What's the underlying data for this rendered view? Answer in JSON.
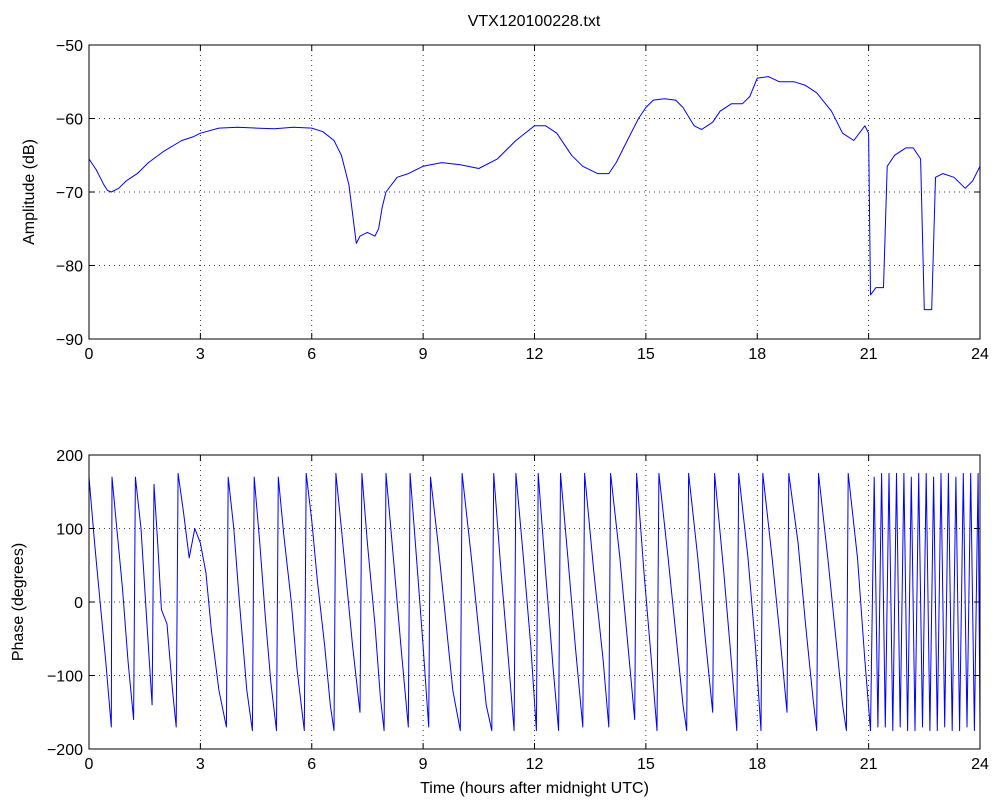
{
  "figure": {
    "title": "VTX120100228.txt",
    "background": "#ffffff",
    "line_color": "#0000ff"
  },
  "chart_data": [
    {
      "type": "line",
      "title": "VTX120100228.txt",
      "xlabel": "",
      "ylabel": "Amplitude (dB)",
      "xlim": [
        0,
        24
      ],
      "ylim": [
        -90,
        -50
      ],
      "xticks": [
        0,
        3,
        6,
        9,
        12,
        15,
        18,
        21,
        24
      ],
      "yticks": [
        -90,
        -80,
        -70,
        -60,
        -50
      ],
      "grid": true,
      "series": [
        {
          "values": [
            [
              0,
              -65.5
            ],
            [
              0.2,
              -67
            ],
            [
              0.4,
              -69
            ],
            [
              0.5,
              -69.8
            ],
            [
              0.6,
              -70
            ],
            [
              0.8,
              -69.5
            ],
            [
              1,
              -68.5
            ],
            [
              1.3,
              -67.5
            ],
            [
              1.6,
              -66
            ],
            [
              2,
              -64.5
            ],
            [
              2.5,
              -63
            ],
            [
              2.8,
              -62.5
            ],
            [
              3,
              -62
            ],
            [
              3.5,
              -61.3
            ],
            [
              4,
              -61.2
            ],
            [
              4.5,
              -61.3
            ],
            [
              5,
              -61.4
            ],
            [
              5.5,
              -61.2
            ],
            [
              6,
              -61.3
            ],
            [
              6.3,
              -61.8
            ],
            [
              6.6,
              -63
            ],
            [
              6.8,
              -65
            ],
            [
              7,
              -69
            ],
            [
              7.1,
              -73
            ],
            [
              7.2,
              -77
            ],
            [
              7.3,
              -76
            ],
            [
              7.5,
              -75.5
            ],
            [
              7.7,
              -76
            ],
            [
              7.8,
              -75
            ],
            [
              7.9,
              -72
            ],
            [
              8,
              -70
            ],
            [
              8.3,
              -68
            ],
            [
              8.6,
              -67.5
            ],
            [
              9,
              -66.5
            ],
            [
              9.5,
              -66
            ],
            [
              10,
              -66.3
            ],
            [
              10.5,
              -66.8
            ],
            [
              11,
              -65.5
            ],
            [
              11.5,
              -63
            ],
            [
              12,
              -61
            ],
            [
              12.3,
              -61
            ],
            [
              12.6,
              -62
            ],
            [
              13,
              -65
            ],
            [
              13.3,
              -66.5
            ],
            [
              13.7,
              -67.5
            ],
            [
              14,
              -67.5
            ],
            [
              14.2,
              -66
            ],
            [
              14.5,
              -63
            ],
            [
              14.8,
              -60
            ],
            [
              15,
              -58.5
            ],
            [
              15.2,
              -57.5
            ],
            [
              15.5,
              -57.3
            ],
            [
              15.8,
              -57.5
            ],
            [
              16,
              -58.5
            ],
            [
              16.3,
              -61
            ],
            [
              16.5,
              -61.5
            ],
            [
              16.8,
              -60.5
            ],
            [
              17,
              -59
            ],
            [
              17.3,
              -58
            ],
            [
              17.6,
              -58
            ],
            [
              17.8,
              -57
            ],
            [
              18,
              -54.5
            ],
            [
              18.3,
              -54.3
            ],
            [
              18.6,
              -55
            ],
            [
              19,
              -55
            ],
            [
              19.3,
              -55.5
            ],
            [
              19.6,
              -56.5
            ],
            [
              20,
              -59
            ],
            [
              20.3,
              -62
            ],
            [
              20.6,
              -63
            ],
            [
              20.9,
              -61
            ],
            [
              21,
              -62
            ],
            [
              21.05,
              -84
            ],
            [
              21.2,
              -83
            ],
            [
              21.4,
              -83
            ],
            [
              21.5,
              -66.5
            ],
            [
              21.7,
              -65
            ],
            [
              22,
              -64
            ],
            [
              22.2,
              -64
            ],
            [
              22.4,
              -65.5
            ],
            [
              22.5,
              -86
            ],
            [
              22.7,
              -86
            ],
            [
              22.8,
              -68
            ],
            [
              23,
              -67.5
            ],
            [
              23.3,
              -68
            ],
            [
              23.6,
              -69.5
            ],
            [
              23.8,
              -68.5
            ],
            [
              24,
              -66.5
            ]
          ]
        }
      ]
    },
    {
      "type": "line",
      "title": "",
      "xlabel": "Time (hours after midnight UTC)",
      "ylabel": "Phase (degrees)",
      "xlim": [
        0,
        24
      ],
      "ylim": [
        -200,
        200
      ],
      "xticks": [
        0,
        3,
        6,
        9,
        12,
        15,
        18,
        21,
        24
      ],
      "yticks": [
        -200,
        -100,
        0,
        100,
        200
      ],
      "grid": true,
      "series": [
        {
          "values": [
            [
              0,
              170
            ],
            [
              0.15,
              80
            ],
            [
              0.3,
              0
            ],
            [
              0.45,
              -80
            ],
            [
              0.6,
              -170
            ],
            [
              0.62,
              170
            ],
            [
              0.75,
              100
            ],
            [
              0.9,
              20
            ],
            [
              1.05,
              -80
            ],
            [
              1.2,
              -160
            ],
            [
              1.25,
              170
            ],
            [
              1.4,
              100
            ],
            [
              1.55,
              -20
            ],
            [
              1.7,
              -140
            ],
            [
              1.75,
              160
            ],
            [
              1.85,
              80
            ],
            [
              1.95,
              -10
            ],
            [
              2.1,
              -30
            ],
            [
              2.25,
              -120
            ],
            [
              2.35,
              -170
            ],
            [
              2.4,
              175
            ],
            [
              2.55,
              120
            ],
            [
              2.7,
              60
            ],
            [
              2.85,
              100
            ],
            [
              3,
              80
            ],
            [
              3.15,
              40
            ],
            [
              3.3,
              -40
            ],
            [
              3.5,
              -120
            ],
            [
              3.7,
              -170
            ],
            [
              3.75,
              170
            ],
            [
              3.9,
              100
            ],
            [
              4.05,
              0
            ],
            [
              4.25,
              -120
            ],
            [
              4.4,
              -175
            ],
            [
              4.45,
              170
            ],
            [
              4.6,
              80
            ],
            [
              4.75,
              -20
            ],
            [
              4.9,
              -110
            ],
            [
              5.05,
              -175
            ],
            [
              5.1,
              170
            ],
            [
              5.25,
              90
            ],
            [
              5.45,
              0
            ],
            [
              5.6,
              -90
            ],
            [
              5.8,
              -175
            ],
            [
              5.85,
              175
            ],
            [
              6,
              110
            ],
            [
              6.15,
              30
            ],
            [
              6.35,
              -60
            ],
            [
              6.5,
              -140
            ],
            [
              6.6,
              -175
            ],
            [
              6.65,
              175
            ],
            [
              6.8,
              100
            ],
            [
              6.95,
              20
            ],
            [
              7.1,
              -60
            ],
            [
              7.3,
              -150
            ],
            [
              7.35,
              175
            ],
            [
              7.5,
              80
            ],
            [
              7.7,
              -30
            ],
            [
              7.85,
              -130
            ],
            [
              7.95,
              -175
            ],
            [
              8,
              175
            ],
            [
              8.2,
              60
            ],
            [
              8.4,
              -60
            ],
            [
              8.6,
              -170
            ],
            [
              8.65,
              175
            ],
            [
              8.85,
              40
            ],
            [
              9,
              -60
            ],
            [
              9.15,
              -170
            ],
            [
              9.2,
              170
            ],
            [
              9.4,
              80
            ],
            [
              9.6,
              -20
            ],
            [
              9.8,
              -120
            ],
            [
              10,
              -175
            ],
            [
              10.05,
              175
            ],
            [
              10.3,
              60
            ],
            [
              10.5,
              -40
            ],
            [
              10.7,
              -140
            ],
            [
              10.85,
              -175
            ],
            [
              10.9,
              175
            ],
            [
              11.1,
              40
            ],
            [
              11.3,
              -80
            ],
            [
              11.45,
              -175
            ],
            [
              11.5,
              175
            ],
            [
              11.7,
              60
            ],
            [
              11.9,
              -60
            ],
            [
              12.05,
              -175
            ],
            [
              12.1,
              175
            ],
            [
              12.3,
              40
            ],
            [
              12.5,
              -90
            ],
            [
              12.65,
              -175
            ],
            [
              12.7,
              175
            ],
            [
              12.9,
              60
            ],
            [
              13.1,
              -60
            ],
            [
              13.3,
              -170
            ],
            [
              13.35,
              175
            ],
            [
              13.6,
              40
            ],
            [
              13.85,
              -80
            ],
            [
              14,
              -170
            ],
            [
              14.05,
              175
            ],
            [
              14.3,
              60
            ],
            [
              14.5,
              -50
            ],
            [
              14.7,
              -160
            ],
            [
              14.75,
              175
            ],
            [
              14.95,
              40
            ],
            [
              15.15,
              -80
            ],
            [
              15.3,
              -175
            ],
            [
              15.35,
              175
            ],
            [
              15.6,
              60
            ],
            [
              15.8,
              -40
            ],
            [
              16,
              -140
            ],
            [
              16.1,
              -175
            ],
            [
              16.15,
              175
            ],
            [
              16.4,
              60
            ],
            [
              16.6,
              -50
            ],
            [
              16.8,
              -150
            ],
            [
              16.85,
              175
            ],
            [
              17.1,
              40
            ],
            [
              17.3,
              -80
            ],
            [
              17.45,
              -175
            ],
            [
              17.5,
              175
            ],
            [
              17.75,
              60
            ],
            [
              17.95,
              -60
            ],
            [
              18.1,
              -175
            ],
            [
              18.15,
              175
            ],
            [
              18.4,
              60
            ],
            [
              18.6,
              -40
            ],
            [
              18.8,
              -150
            ],
            [
              18.85,
              175
            ],
            [
              19.1,
              80
            ],
            [
              19.3,
              -30
            ],
            [
              19.5,
              -130
            ],
            [
              19.6,
              -175
            ],
            [
              19.65,
              175
            ],
            [
              19.9,
              60
            ],
            [
              20.1,
              -40
            ],
            [
              20.3,
              -140
            ],
            [
              20.4,
              -175
            ],
            [
              20.45,
              175
            ],
            [
              20.7,
              60
            ],
            [
              20.9,
              -80
            ],
            [
              21.05,
              -175
            ],
            [
              21.15,
              170
            ],
            [
              21.25,
              -170
            ],
            [
              21.35,
              175
            ],
            [
              21.45,
              -170
            ],
            [
              21.55,
              175
            ],
            [
              21.65,
              -175
            ],
            [
              21.75,
              175
            ],
            [
              21.85,
              -170
            ],
            [
              21.95,
              175
            ],
            [
              22.05,
              -175
            ],
            [
              22.15,
              170
            ],
            [
              22.25,
              -175
            ],
            [
              22.35,
              175
            ],
            [
              22.45,
              -170
            ],
            [
              22.55,
              175
            ],
            [
              22.65,
              -175
            ],
            [
              22.75,
              170
            ],
            [
              22.85,
              -175
            ],
            [
              22.95,
              175
            ],
            [
              23.05,
              -170
            ],
            [
              23.15,
              175
            ],
            [
              23.25,
              -175
            ],
            [
              23.35,
              170
            ],
            [
              23.45,
              -175
            ],
            [
              23.55,
              175
            ],
            [
              23.65,
              -170
            ],
            [
              23.75,
              175
            ],
            [
              23.85,
              -175
            ],
            [
              23.95,
              175
            ],
            [
              24,
              -170
            ]
          ]
        }
      ]
    }
  ]
}
